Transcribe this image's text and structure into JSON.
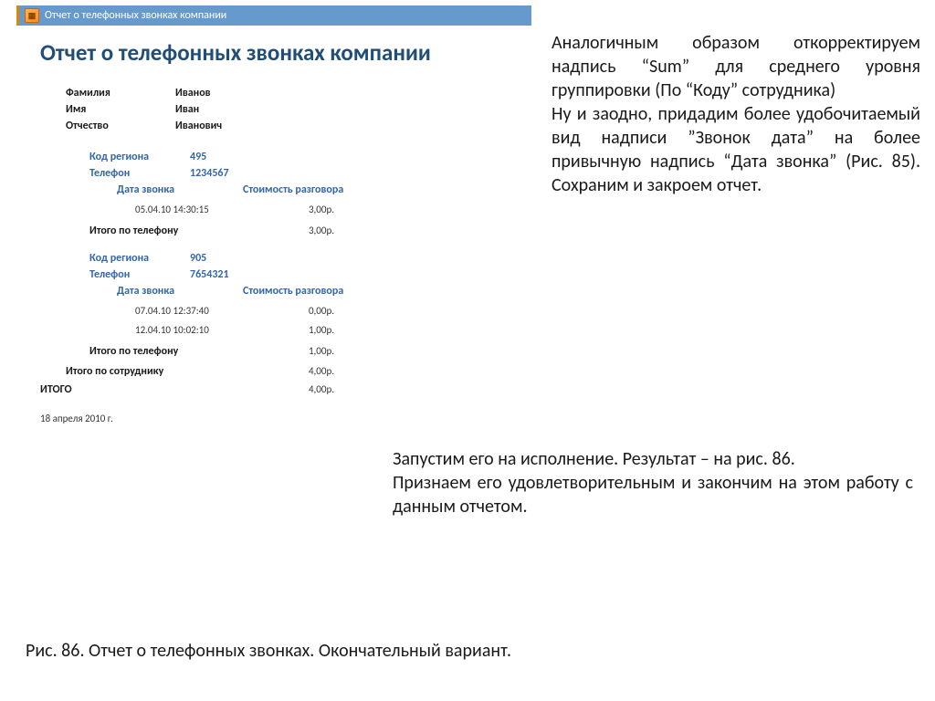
{
  "colors": {
    "titlebar_bg": "#6699cc",
    "titlebar_accent": "#dd8800",
    "heading": "#1f4e79",
    "link_blue": "#3366aa",
    "text": "#1a1a1a"
  },
  "report": {
    "titlebar": "Отчет о телефонных звонках компании",
    "heading": "Отчет о телефонных звонках компании",
    "employee": {
      "surname_label": "Фамилия",
      "surname": "Иванов",
      "name_label": "Имя",
      "name": "Иван",
      "patronymic_label": "Отчество",
      "patronymic": "Иванович"
    },
    "cols": {
      "date": "Дата звонка",
      "cost": "Стоимость разговора"
    },
    "region_label": "Код региона",
    "phone_label": "Телефон",
    "phone_total_label": "Итого по телефону",
    "employee_total_label": "Итого по сотруднику",
    "grand_total_label": "ИТОГО",
    "phones": [
      {
        "region": "495",
        "phone": "1234567",
        "calls": [
          {
            "datetime": "05.04.10 14:30:15",
            "cost": "3,00р."
          }
        ],
        "total": "3,00р."
      },
      {
        "region": "905",
        "phone": "7654321",
        "calls": [
          {
            "datetime": "07.04.10 12:37:40",
            "cost": "0,00р."
          },
          {
            "datetime": "12.04.10 10:02:10",
            "cost": "1,00р."
          }
        ],
        "total": "1,00р."
      }
    ],
    "employee_total": "4,00р.",
    "grand_total": "4,00р.",
    "date": "18 апреля 2010 г."
  },
  "narrative": {
    "p1": "Аналогичным образом откорректируем надпись “Sum” для среднего уровня группировки (По “Коду” сотрудника)",
    "p2": "Ну и заодно, придадим более удобочитаемый вид надписи ”Звонок дата” на более привычную надпись “Дата звонка” (Рис. 85). Сохраним и закроем отчет.",
    "p3": "Запустим его на исполнение. Результат – на рис. 86.",
    "p4": "Признаем его удовлетворительным и закончим на этом работу с данным отчетом.",
    "caption": "Рис. 86. Отчет о телефонных звонках. Окончательный вариант."
  }
}
